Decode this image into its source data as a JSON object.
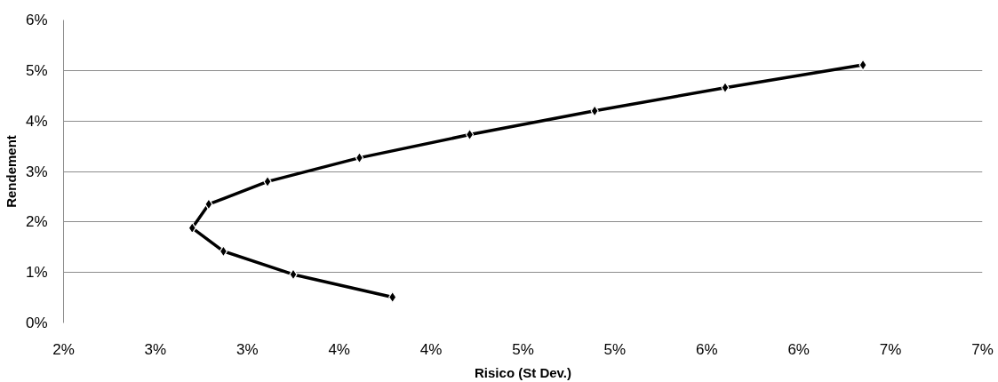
{
  "chart_data": {
    "type": "line",
    "xlabel": "Risico (St Dev.)",
    "ylabel": "Rendement",
    "series": [
      {
        "color": "#000000",
        "x": [
          3.79,
          3.25,
          2.87,
          2.7,
          2.79,
          3.11,
          3.61,
          4.21,
          4.89,
          5.6,
          6.35
        ],
        "values": [
          0.51,
          0.96,
          1.42,
          1.88,
          2.35,
          2.8,
          3.27,
          3.73,
          4.2,
          4.66,
          5.11
        ]
      }
    ],
    "xlim": [
      2,
      7
    ],
    "ylim": [
      0,
      6
    ],
    "xticks": [
      {
        "value": 2,
        "label": "2%"
      },
      {
        "value": 2.5,
        "label": "3%"
      },
      {
        "value": 3,
        "label": "3%"
      },
      {
        "value": 3.5,
        "label": "4%"
      },
      {
        "value": 4,
        "label": "4%"
      },
      {
        "value": 4.5,
        "label": "5%"
      },
      {
        "value": 5,
        "label": "5%"
      },
      {
        "value": 5.5,
        "label": "6%"
      },
      {
        "value": 6,
        "label": "6%"
      },
      {
        "value": 6.5,
        "label": "7%"
      },
      {
        "value": 7,
        "label": "7%"
      }
    ],
    "yticks": [
      {
        "value": 0,
        "label": "0%"
      },
      {
        "value": 1,
        "label": "1%"
      },
      {
        "value": 2,
        "label": "2%"
      },
      {
        "value": 3,
        "label": "3%"
      },
      {
        "value": 4,
        "label": "4%"
      },
      {
        "value": 5,
        "label": "5%"
      },
      {
        "value": 6,
        "label": "6%"
      }
    ],
    "grid": "y",
    "marker": "diamond",
    "line_style": "solid"
  }
}
